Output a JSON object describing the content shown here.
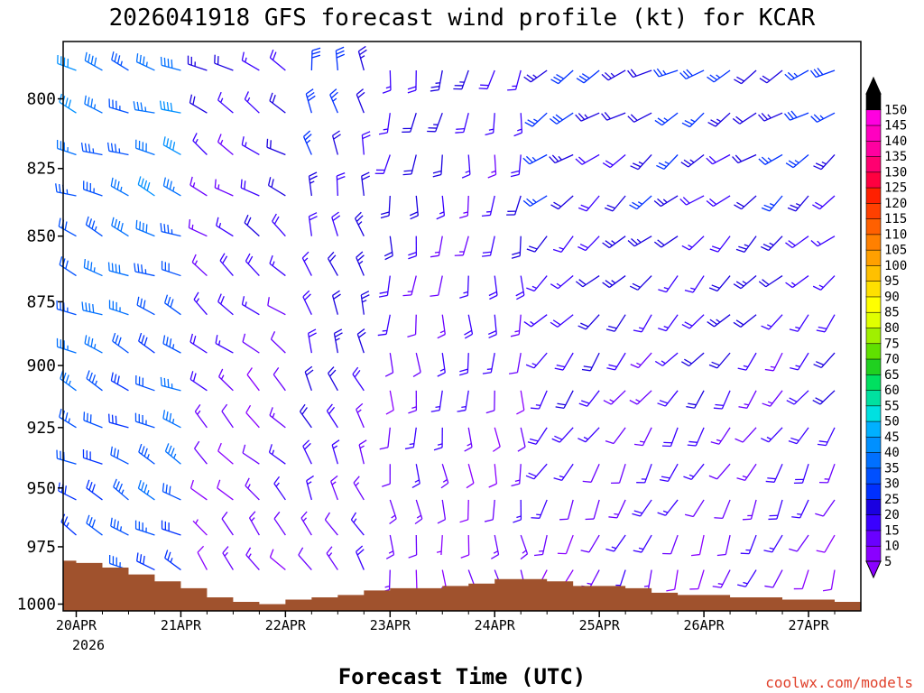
{
  "chart_data": {
    "type": "wind_barb_time_height",
    "title": "2026041918 GFS forecast wind profile (kt) for KCAR",
    "xlabel": "Forecast Time (UTC)",
    "ylabel": "",
    "credit": "coolwx.com/models",
    "x_day_labels": [
      "20APR",
      "21APR",
      "22APR",
      "23APR",
      "24APR",
      "25APR",
      "26APR",
      "27APR"
    ],
    "x_year_label": "2026",
    "x_range_hours": [
      -3,
      180
    ],
    "y_ticks": [
      "800",
      "825",
      "850",
      "875",
      "900",
      "925",
      "950",
      "975",
      "1000"
    ],
    "y_range_mb": [
      780,
      1003
    ],
    "levels_mb": [
      790,
      805,
      820,
      835,
      850,
      865,
      880,
      895,
      910,
      925,
      940,
      955,
      970,
      985
    ],
    "forecast_hours_step": 6,
    "colorbar": {
      "values": [
        5,
        10,
        15,
        20,
        25,
        30,
        35,
        40,
        45,
        50,
        55,
        60,
        65,
        70,
        75,
        80,
        85,
        90,
        95,
        100,
        105,
        110,
        115,
        120,
        125,
        130,
        135,
        140,
        145,
        150
      ],
      "labels": [
        "5",
        "10",
        "15",
        "20",
        "25",
        "30",
        "35",
        "40",
        "45",
        "50",
        "55",
        "60",
        "65",
        "70",
        "75",
        "80",
        "85",
        "90",
        "95",
        "100",
        "105",
        "110",
        "115",
        "120",
        "125",
        "130",
        "135",
        "140",
        "145",
        "150"
      ],
      "colors": [
        "#8a00ff",
        "#6a00ff",
        "#3a00ff",
        "#1a00e0",
        "#0030ff",
        "#0050ff",
        "#0070ff",
        "#0090ff",
        "#00b0ff",
        "#00e0e0",
        "#00e0a0",
        "#00e060",
        "#20d020",
        "#60e000",
        "#a0f000",
        "#e0ff00",
        "#ffff00",
        "#ffe000",
        "#ffc000",
        "#ffa000",
        "#ff8000",
        "#ff6000",
        "#ff4000",
        "#ff2000",
        "#ff0040",
        "#ff0070",
        "#ff00a0",
        "#ff00c0",
        "#ff00e0",
        "#000000"
      ]
    },
    "wind_regimes": [
      {
        "hours": [
          -3,
          30
        ],
        "upper_dir_deg": 290,
        "lower_dir_deg": 300,
        "upper_kt": 38,
        "lower_kt": 30
      },
      {
        "hours": [
          30,
          54
        ],
        "upper_dir_deg": 300,
        "lower_dir_deg": 320,
        "upper_kt": 20,
        "lower_kt": 10
      },
      {
        "hours": [
          54,
          72
        ],
        "upper_dir_deg": 350,
        "lower_dir_deg": 330,
        "upper_kt": 25,
        "lower_kt": 15
      },
      {
        "hours": [
          72,
          108
        ],
        "upper_dir_deg": 190,
        "lower_dir_deg": 170,
        "upper_kt": 20,
        "lower_kt": 10
      },
      {
        "hours": [
          108,
          180
        ],
        "upper_dir_deg": 240,
        "lower_dir_deg": 200,
        "upper_kt": 25,
        "lower_kt": 12
      }
    ],
    "surface_pressure_mb": [
      {
        "h": -3,
        "p": 981
      },
      {
        "h": 0,
        "p": 982
      },
      {
        "h": 6,
        "p": 984
      },
      {
        "h": 12,
        "p": 987
      },
      {
        "h": 18,
        "p": 990
      },
      {
        "h": 24,
        "p": 993
      },
      {
        "h": 30,
        "p": 997
      },
      {
        "h": 36,
        "p": 999
      },
      {
        "h": 42,
        "p": 1000
      },
      {
        "h": 48,
        "p": 998
      },
      {
        "h": 54,
        "p": 997
      },
      {
        "h": 60,
        "p": 996
      },
      {
        "h": 66,
        "p": 994
      },
      {
        "h": 72,
        "p": 993
      },
      {
        "h": 78,
        "p": 993
      },
      {
        "h": 84,
        "p": 992
      },
      {
        "h": 90,
        "p": 991
      },
      {
        "h": 96,
        "p": 989
      },
      {
        "h": 102,
        "p": 989
      },
      {
        "h": 108,
        "p": 990
      },
      {
        "h": 114,
        "p": 992
      },
      {
        "h": 120,
        "p": 992
      },
      {
        "h": 126,
        "p": 993
      },
      {
        "h": 132,
        "p": 995
      },
      {
        "h": 138,
        "p": 996
      },
      {
        "h": 144,
        "p": 996
      },
      {
        "h": 150,
        "p": 997
      },
      {
        "h": 156,
        "p": 997
      },
      {
        "h": 162,
        "p": 998
      },
      {
        "h": 168,
        "p": 998
      },
      {
        "h": 174,
        "p": 999
      },
      {
        "h": 180,
        "p": 999
      }
    ],
    "terrain_color": "#a0522d"
  }
}
